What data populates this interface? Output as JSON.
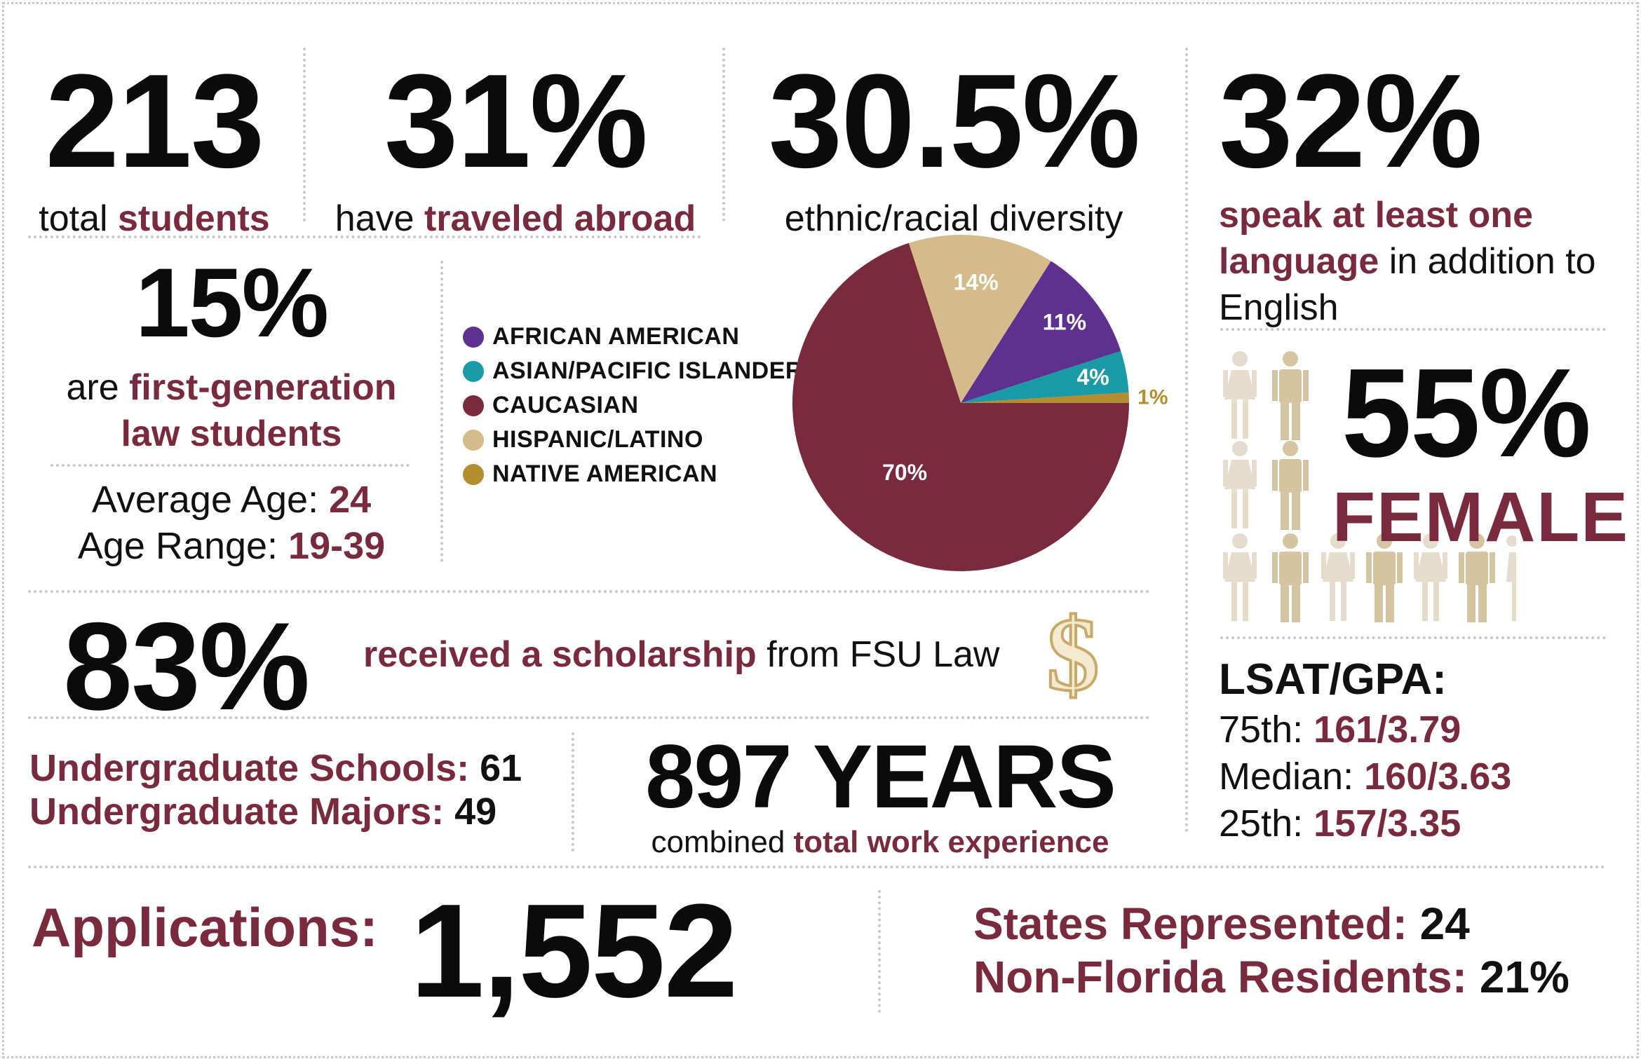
{
  "students": {
    "value": "213",
    "pre": "total ",
    "emph": "students"
  },
  "abroad": {
    "value": "31%",
    "pre": "have ",
    "emph": "traveled abroad"
  },
  "diversity": {
    "value": "30.5%",
    "text": "ethnic/racial diversity"
  },
  "language": {
    "value": "32%",
    "emph": "speak at least one language",
    "post": " in addition to English"
  },
  "firstgen": {
    "value": "15%",
    "pre": "are ",
    "emph": "first-generation law students"
  },
  "age": {
    "avg_label": "Average Age: ",
    "avg": "24",
    "range_label": "Age Range: ",
    "range": "19-39"
  },
  "female": {
    "value": "55%",
    "label": "FEMALE"
  },
  "scholarship": {
    "value": "83%",
    "emph": "received a scholarship",
    "post": " from FSU Law",
    "icon": "dollar-sign-icon"
  },
  "undergrad": {
    "schools_label": "Undergraduate Schools: ",
    "schools": "61",
    "majors_label": "Undergraduate Majors: ",
    "majors": "49"
  },
  "work": {
    "value": "897 YEARS",
    "pre": "combined ",
    "emph": "total work experience"
  },
  "lsat": {
    "title": "LSAT/GPA:",
    "p75_label": "75th: ",
    "p75": "161/3.79",
    "median_label": "Median: ",
    "median": "160/3.63",
    "p25_label": "25th: ",
    "p25": "157/3.35"
  },
  "applications": {
    "label": "Applications: ",
    "value": "1,552"
  },
  "states": {
    "label": "States Represented: ",
    "value": "24",
    "nonfl_label": "Non-Florida Residents: ",
    "nonfl": "21%"
  },
  "colors": {
    "maroon": "#7a2a3d",
    "purple": "#5e3190",
    "teal": "#1a9aa6",
    "tan": "#d5bb8a",
    "gold": "#b38d2e",
    "person_female": "#e6dccb",
    "person_male": "#d5c4a1"
  },
  "chart_data": {
    "type": "pie",
    "categories": [
      "AFRICAN AMERICAN",
      "ASIAN/PACIFIC ISLANDER",
      "CAUCASIAN",
      "HISPANIC/LATINO",
      "NATIVE AMERICAN"
    ],
    "values": [
      11,
      4,
      70,
      14,
      1
    ],
    "labels": [
      "11%",
      "4%",
      "70%",
      "14%",
      "1%"
    ],
    "colors": [
      "#5e3190",
      "#1a9aa6",
      "#7a2a3d",
      "#d5bb8a",
      "#b38d2e"
    ],
    "legend": "left"
  }
}
